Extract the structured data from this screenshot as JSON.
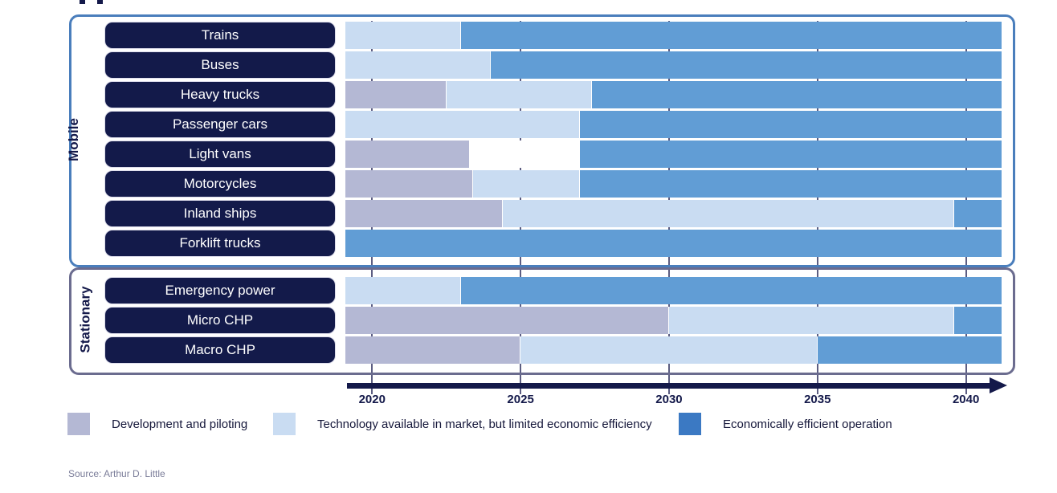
{
  "source": "Source: Arthur D. Little",
  "legend": {
    "items": [
      {
        "label": "Development and piloting",
        "color": "#b4b8d4"
      },
      {
        "label": "Technology available in market, but limited economic efficiency",
        "color": "#c9dcf2"
      },
      {
        "label": "Economically efficient operation",
        "color": "#3b79c3"
      }
    ]
  },
  "chart_data": {
    "type": "area",
    "subtype": "timeline-roadmap-gantt",
    "title": "",
    "xlabel": "",
    "ylabel": "",
    "axis": {
      "ticks": [
        2020,
        2025,
        2030,
        2035,
        2040
      ],
      "range": [
        2019.1,
        2041.2
      ],
      "arrow": true,
      "grid": true
    },
    "phases": {
      "development": {
        "label": "Development and piloting",
        "color": "#b4b8d4"
      },
      "market": {
        "label": "Technology available in market, but limited economic efficiency",
        "color": "#c9dcf2"
      },
      "economic": {
        "label": "Economically efficient operation",
        "color": "#619dd5"
      },
      "gap": {
        "label": "",
        "color": "#ffffff"
      }
    },
    "groups": [
      {
        "name": "Mobile",
        "rows": [
          {
            "label": "Trains",
            "segments": [
              {
                "phase": "market",
                "start": 2019.1,
                "end": 2023.0
              },
              {
                "phase": "economic",
                "start": 2023.0,
                "end": 2041.2
              }
            ]
          },
          {
            "label": "Buses",
            "segments": [
              {
                "phase": "market",
                "start": 2019.1,
                "end": 2024.0
              },
              {
                "phase": "economic",
                "start": 2024.0,
                "end": 2041.2
              }
            ]
          },
          {
            "label": "Heavy trucks",
            "segments": [
              {
                "phase": "development",
                "start": 2019.1,
                "end": 2022.5
              },
              {
                "phase": "market",
                "start": 2022.5,
                "end": 2027.4
              },
              {
                "phase": "economic",
                "start": 2027.4,
                "end": 2041.2
              }
            ]
          },
          {
            "label": "Passenger cars",
            "segments": [
              {
                "phase": "market",
                "start": 2019.1,
                "end": 2027.0
              },
              {
                "phase": "economic",
                "start": 2027.0,
                "end": 2041.2
              }
            ]
          },
          {
            "label": "Light vans",
            "segments": [
              {
                "phase": "development",
                "start": 2019.1,
                "end": 2023.3
              },
              {
                "phase": "gap",
                "start": 2023.3,
                "end": 2027.0
              },
              {
                "phase": "economic",
                "start": 2027.0,
                "end": 2041.2
              }
            ]
          },
          {
            "label": "Motorcycles",
            "segments": [
              {
                "phase": "development",
                "start": 2019.1,
                "end": 2023.4
              },
              {
                "phase": "market",
                "start": 2023.4,
                "end": 2027.0
              },
              {
                "phase": "economic",
                "start": 2027.0,
                "end": 2041.2
              }
            ]
          },
          {
            "label": "Inland ships",
            "segments": [
              {
                "phase": "development",
                "start": 2019.1,
                "end": 2024.4
              },
              {
                "phase": "market",
                "start": 2024.4,
                "end": 2039.6
              },
              {
                "phase": "economic",
                "start": 2039.6,
                "end": 2041.2
              }
            ]
          },
          {
            "label": "Forklift trucks",
            "segments": [
              {
                "phase": "economic",
                "start": 2019.1,
                "end": 2041.2
              }
            ]
          }
        ]
      },
      {
        "name": "Stationary",
        "rows": [
          {
            "label": "Emergency power",
            "segments": [
              {
                "phase": "market",
                "start": 2019.1,
                "end": 2023.0
              },
              {
                "phase": "economic",
                "start": 2023.0,
                "end": 2041.2
              }
            ]
          },
          {
            "label": "Micro CHP",
            "segments": [
              {
                "phase": "development",
                "start": 2019.1,
                "end": 2030.0
              },
              {
                "phase": "market",
                "start": 2030.0,
                "end": 2039.6
              },
              {
                "phase": "economic",
                "start": 2039.6,
                "end": 2041.2
              }
            ]
          },
          {
            "label": "Macro CHP",
            "segments": [
              {
                "phase": "development",
                "start": 2019.1,
                "end": 2025.0
              },
              {
                "phase": "market",
                "start": 2025.0,
                "end": 2035.0
              },
              {
                "phase": "economic",
                "start": 2035.0,
                "end": 2041.2
              }
            ]
          }
        ]
      }
    ]
  }
}
